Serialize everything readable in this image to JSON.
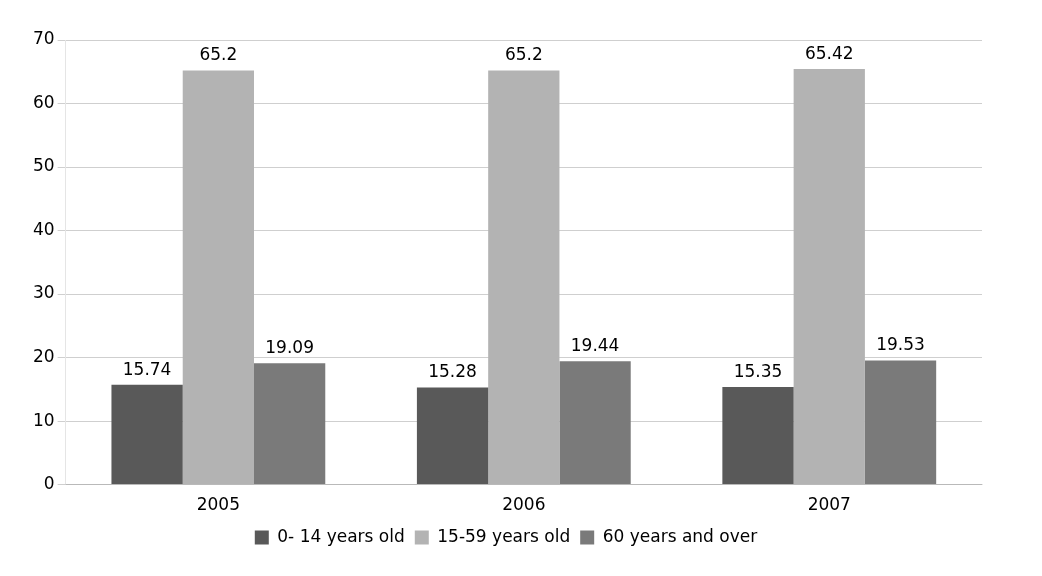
{
  "chart_data": {
    "type": "bar",
    "categories": [
      "2005",
      "2006",
      "2007"
    ],
    "series": [
      {
        "name": "0- 14 years old",
        "color": "#595959",
        "values": [
          15.74,
          15.28,
          15.35
        ]
      },
      {
        "name": "15-59 years old",
        "color": "#b3b3b3",
        "values": [
          65.2,
          65.2,
          65.42
        ]
      },
      {
        "name": "60 years and over",
        "color": "#7a7a7a",
        "values": [
          19.09,
          19.44,
          19.53
        ]
      }
    ],
    "ylim": [
      0,
      70
    ],
    "yticks": [
      0,
      10,
      20,
      30,
      40,
      50,
      60,
      70
    ],
    "grid": "y",
    "legend": "bottom",
    "data_labels": true
  }
}
